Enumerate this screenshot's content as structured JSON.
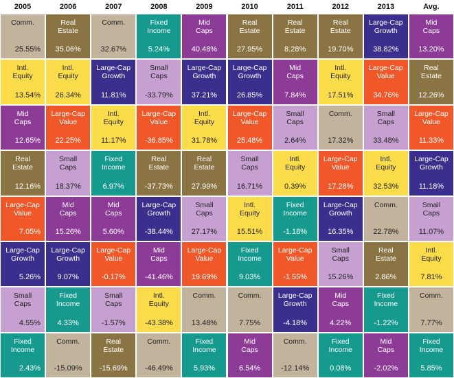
{
  "chart_data": {
    "type": "table",
    "columns": [
      "2005",
      "2006",
      "2007",
      "2008",
      "2009",
      "2010",
      "2011",
      "2012",
      "2013",
      "Avg."
    ],
    "colors": {
      "Comm.": "#c2b39c",
      "Real Estate": "#8a7444",
      "Fixed Income": "#169a8e",
      "Mid Caps": "#8c3b96",
      "Large-Cap Growth": "#3a2f8c",
      "Intl. Equity": "#fddc4c",
      "Small Caps": "#c6a0d0",
      "Large-Cap Value": "#f0582a"
    },
    "cells": [
      [
        {
          "label": "Comm.",
          "value": "25.55%"
        },
        {
          "label": "Intl.\nEquity",
          "value": "13.54%"
        },
        {
          "label": "Mid\nCaps",
          "value": "12.65%"
        },
        {
          "label": "Real\nEstate",
          "value": "12.16%"
        },
        {
          "label": "Large-Cap\nValue",
          "value": "7.05%"
        },
        {
          "label": "Large-Cap\nGrowth",
          "value": "5.26%"
        },
        {
          "label": "Small\nCaps",
          "value": "4.55%"
        },
        {
          "label": "Fixed\nIncome",
          "value": "2.43%"
        }
      ],
      [
        {
          "label": "Real\nEstate",
          "value": "35.06%"
        },
        {
          "label": "Intl.\nEquity",
          "value": "26.34%"
        },
        {
          "label": "Large-Cap\nValue",
          "value": "22.25%"
        },
        {
          "label": "Small\nCaps",
          "value": "18.37%"
        },
        {
          "label": "Mid\nCaps",
          "value": "15.26%"
        },
        {
          "label": "Large-Cap\nGrowth",
          "value": "9.07%"
        },
        {
          "label": "Fixed\nIncome",
          "value": "4.33%"
        },
        {
          "label": "Comm.",
          "value": "-15.09%"
        }
      ],
      [
        {
          "label": "Comm.",
          "value": "32.67%"
        },
        {
          "label": "Large-Cap\nGrowth",
          "value": "11.81%"
        },
        {
          "label": "Intl.\nEquity",
          "value": "11.17%"
        },
        {
          "label": "Fixed\nIncome",
          "value": "6.97%"
        },
        {
          "label": "Mid\nCaps",
          "value": "5.60%"
        },
        {
          "label": "Large-Cap\nValue",
          "value": "-0.17%"
        },
        {
          "label": "Small\nCaps",
          "value": "-1.57%"
        },
        {
          "label": "Real\nEstate",
          "value": "-15.69%"
        }
      ],
      [
        {
          "label": "Fixed\nIncome",
          "value": "5.24%"
        },
        {
          "label": "Small\nCaps",
          "value": "-33.79%"
        },
        {
          "label": "Large-Cap\nValue",
          "value": "-36.85%"
        },
        {
          "label": "Real\nEstate",
          "value": "-37.73%"
        },
        {
          "label": "Large-Cap\nGrowth",
          "value": "-38.44%"
        },
        {
          "label": "Mid\nCaps",
          "value": "-41.46%"
        },
        {
          "label": "Intl.\nEquity",
          "value": "-43.38%"
        },
        {
          "label": "Comm.",
          "value": "-46.49%"
        }
      ],
      [
        {
          "label": "Mid\nCaps",
          "value": "40.48%"
        },
        {
          "label": "Large-Cap\nGrowth",
          "value": "37.21%"
        },
        {
          "label": "Intl.\nEquity",
          "value": "31.78%"
        },
        {
          "label": "Real\nEstate",
          "value": "27.99%"
        },
        {
          "label": "Small\nCaps",
          "value": "27.17%"
        },
        {
          "label": "Large-Cap\nValue",
          "value": "19.69%"
        },
        {
          "label": "Comm.",
          "value": "13.48%"
        },
        {
          "label": "Fixed\nIncome",
          "value": "5.93%"
        }
      ],
      [
        {
          "label": "Real\nEstate",
          "value": "27.95%"
        },
        {
          "label": "Large-Cap\nGrowth",
          "value": "26.85%"
        },
        {
          "label": "Large-Cap\nValue",
          "value": "25.48%"
        },
        {
          "label": "Small\nCaps",
          "value": "16.71%"
        },
        {
          "label": "Intl.\nEquity",
          "value": "15.51%"
        },
        {
          "label": "Fixed\nIncome",
          "value": "9.03%"
        },
        {
          "label": "Comm.",
          "value": "7.75%"
        },
        {
          "label": "Mid\nCaps",
          "value": "6.54%"
        }
      ],
      [
        {
          "label": "Real\nEstate",
          "value": "8.28%"
        },
        {
          "label": "Mid\nCaps",
          "value": "7.84%"
        },
        {
          "label": "Small\nCaps",
          "value": "2.64%"
        },
        {
          "label": "Intl.\nEquity",
          "value": "0.39%"
        },
        {
          "label": "Fixed\nIncome",
          "value": "-1.18%"
        },
        {
          "label": "Large-Cap\nValue",
          "value": "-1.55%"
        },
        {
          "label": "Large-Cap\nGrowth",
          "value": "-4.18%"
        },
        {
          "label": "Comm.",
          "value": "-12.14%"
        }
      ],
      [
        {
          "label": "Real\nEstate",
          "value": "19.70%"
        },
        {
          "label": "Intl.\nEquity",
          "value": "17.51%"
        },
        {
          "label": "Comm.",
          "value": "17.32%"
        },
        {
          "label": "Large-Cap\nValue",
          "value": "17.28%"
        },
        {
          "label": "Large-Cap\nGrowth",
          "value": "16.35%"
        },
        {
          "label": "Small\nCaps",
          "value": "15.26%"
        },
        {
          "label": "Mid\nCaps",
          "value": "4.22%"
        },
        {
          "label": "Fixed\nIncome",
          "value": "0.08%"
        }
      ],
      [
        {
          "label": "Large-Cap\nGrowth",
          "value": "38.82%"
        },
        {
          "label": "Large-Cap\nValue",
          "value": "34.76%"
        },
        {
          "label": "Small\nCaps",
          "value": "33.48%"
        },
        {
          "label": "Intl.\nEquity",
          "value": "32.53%"
        },
        {
          "label": "Comm.",
          "value": "22.78%"
        },
        {
          "label": "Real\nEstate",
          "value": "2.86%"
        },
        {
          "label": "Fixed\nIncome",
          "value": "-1.22%"
        },
        {
          "label": "Mid\nCaps",
          "value": "-2.02%"
        }
      ],
      [
        {
          "label": "Mid\nCaps",
          "value": "13.20%"
        },
        {
          "label": "Real\nEstate",
          "value": "12.26%"
        },
        {
          "label": "Large-Cap\nValue",
          "value": "11.33%"
        },
        {
          "label": "Large-Cap\nGrowth",
          "value": "11.18%"
        },
        {
          "label": "Small\nCaps",
          "value": "11.07%"
        },
        {
          "label": "Intl.\nEquity",
          "value": "7.81%"
        },
        {
          "label": "Comm.",
          "value": "7.77%"
        },
        {
          "label": "Fixed\nIncome",
          "value": "5.85%"
        }
      ]
    ]
  }
}
